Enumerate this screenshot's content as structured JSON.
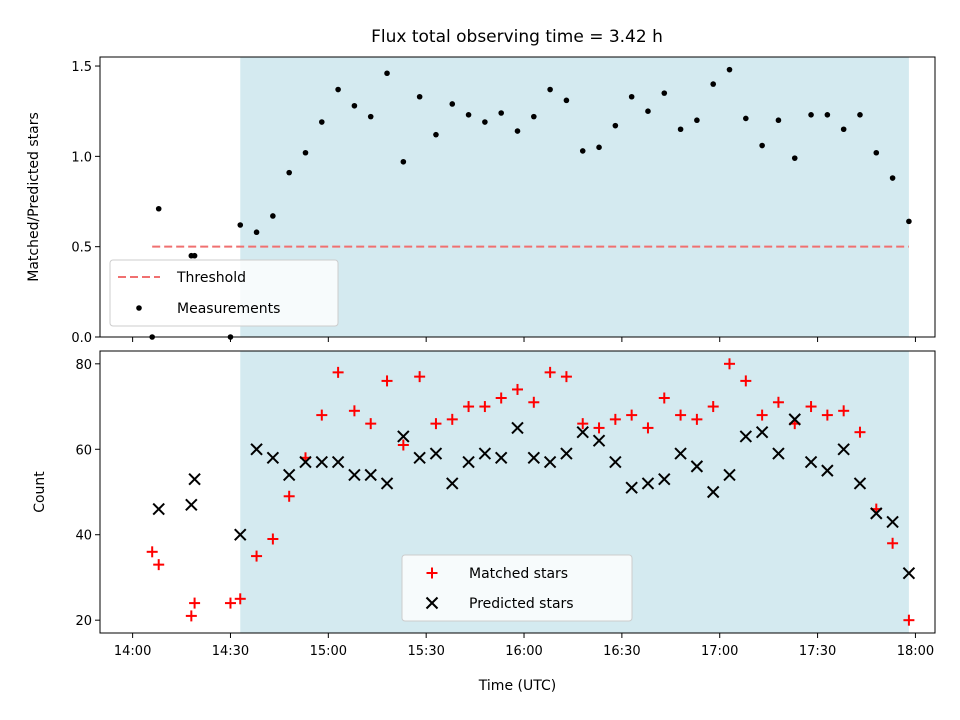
{
  "title": "Flux total observing time = 3.42 h",
  "colors": {
    "observing_span": "#d4eaf0",
    "threshold": "#f07070",
    "measurements": "#000000",
    "matched": "#ff0000",
    "predicted": "#000000"
  },
  "chart_data": [
    {
      "type": "scatter",
      "ylabel": "Matched/Predicted stars",
      "xlim": [
        "13:50",
        "18:06"
      ],
      "ylim": [
        0,
        1.55
      ],
      "yticks": [
        "0.0",
        "0.5",
        "1.0",
        "1.5"
      ],
      "shaded_span": [
        "14:33",
        "17:58"
      ],
      "threshold": {
        "name": "Threshold",
        "y": 0.5,
        "x_range": [
          "14:06",
          "17:58"
        ]
      },
      "legend_placement": "lower-left",
      "series": [
        {
          "name": "Measurements",
          "x": [
            "14:06",
            "14:08",
            "14:18",
            "14:19",
            "14:30",
            "14:33",
            "14:38",
            "14:43",
            "14:48",
            "14:53",
            "14:58",
            "15:03",
            "15:08",
            "15:13",
            "15:18",
            "15:23",
            "15:28",
            "15:33",
            "15:38",
            "15:43",
            "15:48",
            "15:53",
            "15:58",
            "16:03",
            "16:08",
            "16:13",
            "16:18",
            "16:23",
            "16:28",
            "16:33",
            "16:38",
            "16:43",
            "16:48",
            "16:53",
            "16:58",
            "17:03",
            "17:08",
            "17:13",
            "17:18",
            "17:23",
            "17:28",
            "17:33",
            "17:38",
            "17:43",
            "17:48",
            "17:53",
            "17:58"
          ],
          "y": [
            0.0,
            0.71,
            0.45,
            0.45,
            0.0,
            0.62,
            0.58,
            0.67,
            0.91,
            1.02,
            1.19,
            1.37,
            1.28,
            1.22,
            1.46,
            0.97,
            1.33,
            1.12,
            1.29,
            1.23,
            1.19,
            1.24,
            1.14,
            1.22,
            1.37,
            1.31,
            1.03,
            1.05,
            1.17,
            1.33,
            1.25,
            1.35,
            1.15,
            1.2,
            1.4,
            1.48,
            1.21,
            1.06,
            1.2,
            0.99,
            1.23,
            1.23,
            1.15,
            1.23,
            1.02,
            0.88,
            0.64
          ]
        }
      ]
    },
    {
      "type": "scatter",
      "xlabel": "Time (UTC)",
      "ylabel": "Count",
      "xlim": [
        "13:50",
        "18:06"
      ],
      "ylim": [
        17,
        83
      ],
      "xticks": [
        "14:00",
        "14:30",
        "15:00",
        "15:30",
        "16:00",
        "16:30",
        "17:00",
        "17:30",
        "18:00"
      ],
      "yticks": [
        "20",
        "40",
        "60",
        "80"
      ],
      "shaded_span": [
        "14:33",
        "17:58"
      ],
      "legend_placement": "lower-center",
      "series": [
        {
          "name": "Matched stars",
          "x": [
            "14:06",
            "14:08",
            "14:18",
            "14:19",
            "14:30",
            "14:33",
            "14:38",
            "14:43",
            "14:48",
            "14:53",
            "14:58",
            "15:03",
            "15:08",
            "15:13",
            "15:18",
            "15:23",
            "15:28",
            "15:33",
            "15:38",
            "15:43",
            "15:48",
            "15:53",
            "15:58",
            "16:03",
            "16:08",
            "16:13",
            "16:18",
            "16:23",
            "16:28",
            "16:33",
            "16:38",
            "16:43",
            "16:48",
            "16:53",
            "16:58",
            "17:03",
            "17:08",
            "17:13",
            "17:18",
            "17:23",
            "17:28",
            "17:33",
            "17:38",
            "17:43",
            "17:48",
            "17:53",
            "17:58"
          ],
          "y": [
            36,
            33,
            21,
            24,
            24,
            25,
            35,
            39,
            49,
            58,
            68,
            78,
            69,
            66,
            76,
            61,
            77,
            66,
            67,
            70,
            70,
            72,
            74,
            71,
            78,
            77,
            66,
            65,
            67,
            68,
            65,
            72,
            68,
            67,
            70,
            80,
            76,
            68,
            71,
            66,
            70,
            68,
            69,
            64,
            46,
            38,
            20
          ]
        },
        {
          "name": "Predicted stars",
          "x": [
            "14:08",
            "14:18",
            "14:19",
            "14:33",
            "14:38",
            "14:43",
            "14:48",
            "14:53",
            "14:58",
            "15:03",
            "15:08",
            "15:13",
            "15:18",
            "15:23",
            "15:28",
            "15:33",
            "15:38",
            "15:43",
            "15:48",
            "15:53",
            "15:58",
            "16:03",
            "16:08",
            "16:13",
            "16:18",
            "16:23",
            "16:28",
            "16:33",
            "16:38",
            "16:43",
            "16:48",
            "16:53",
            "16:58",
            "17:03",
            "17:08",
            "17:13",
            "17:18",
            "17:23",
            "17:28",
            "17:33",
            "17:38",
            "17:43",
            "17:48",
            "17:53",
            "17:58"
          ],
          "y": [
            46,
            47,
            53,
            40,
            60,
            58,
            54,
            57,
            57,
            57,
            54,
            54,
            52,
            63,
            58,
            59,
            52,
            57,
            59,
            58,
            65,
            58,
            57,
            59,
            64,
            62,
            57,
            51,
            52,
            53,
            59,
            56,
            50,
            54,
            63,
            64,
            59,
            67,
            57,
            55,
            60,
            52,
            45,
            43,
            31
          ]
        }
      ]
    }
  ]
}
